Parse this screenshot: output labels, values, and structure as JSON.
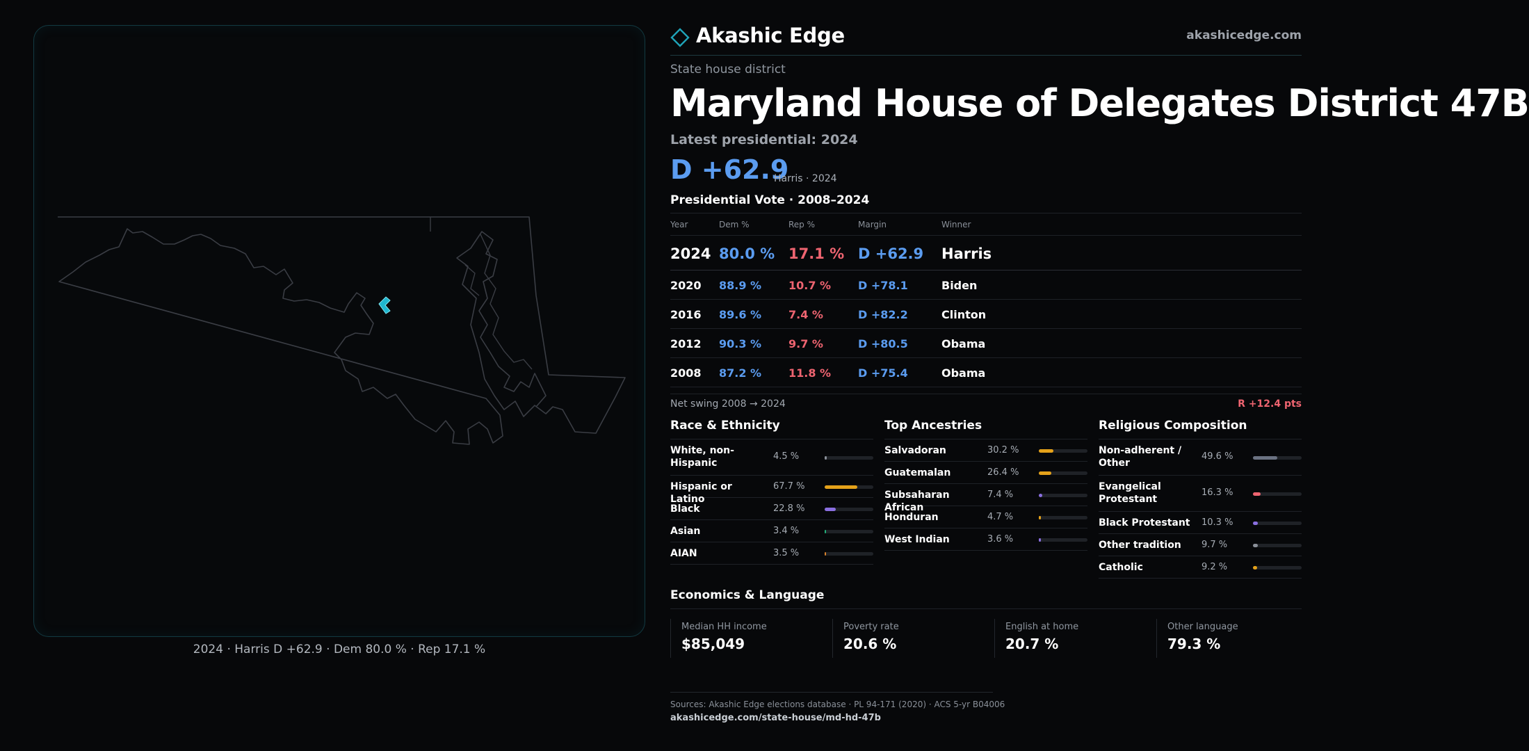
{
  "brand": {
    "name": "Akashic Edge",
    "url": "akashicedge.com",
    "logo_icon": "diamond-outline-icon",
    "accent": "#1fa3b8"
  },
  "district": {
    "eyebrow": "State house district",
    "title": "Maryland House of Delegates District 47B"
  },
  "latest": {
    "label": "Latest presidential: 2024",
    "margin": "D +62.9",
    "sub": "Harris · 2024"
  },
  "presidential": {
    "title": "Presidential Vote · 2008–2024",
    "headers": {
      "year": "Year",
      "dem": "Dem %",
      "rep": "Rep %",
      "margin": "Margin",
      "winner": "Winner"
    },
    "rows": [
      {
        "year": "2024",
        "dem": "80.0 %",
        "rep": "17.1 %",
        "margin": "D +62.9",
        "winner": "Harris"
      },
      {
        "year": "2020",
        "dem": "88.9 %",
        "rep": "10.7 %",
        "margin": "D +78.1",
        "winner": "Biden"
      },
      {
        "year": "2016",
        "dem": "89.6 %",
        "rep": "7.4 %",
        "margin": "D +82.2",
        "winner": "Clinton"
      },
      {
        "year": "2012",
        "dem": "90.3 %",
        "rep": "9.7 %",
        "margin": "D +80.5",
        "winner": "Obama"
      },
      {
        "year": "2008",
        "dem": "87.2 %",
        "rep": "11.8 %",
        "margin": "D +75.4",
        "winner": "Obama"
      }
    ],
    "swing_label": "Net swing 2008 → 2024",
    "swing_value": "R +12.4 pts"
  },
  "race": {
    "title": "Race & Ethnicity",
    "items": [
      {
        "label": "White, non-Hispanic",
        "value": "4.5 %",
        "fraction": 0.045,
        "color": "#8a8f98"
      },
      {
        "label": "Hispanic or Latino",
        "value": "67.7 %",
        "fraction": 0.677,
        "color": "#e5a21a"
      },
      {
        "label": "Black",
        "value": "22.8 %",
        "fraction": 0.228,
        "color": "#8a6fe0"
      },
      {
        "label": "Asian",
        "value": "3.4 %",
        "fraction": 0.034,
        "color": "#23b07a"
      },
      {
        "label": "AIAN",
        "value": "3.5 %",
        "fraction": 0.035,
        "color": "#d9822b"
      }
    ]
  },
  "ancestry": {
    "title": "Top Ancestries",
    "items": [
      {
        "label": "Salvadoran",
        "value": "30.2 %",
        "fraction": 0.302,
        "color": "#e5a21a"
      },
      {
        "label": "Guatemalan",
        "value": "26.4 %",
        "fraction": 0.264,
        "color": "#e5a21a"
      },
      {
        "label": "Subsaharan African",
        "value": "7.4 %",
        "fraction": 0.074,
        "color": "#8a6fe0"
      },
      {
        "label": "Honduran",
        "value": "4.7 %",
        "fraction": 0.047,
        "color": "#e5a21a"
      },
      {
        "label": "West Indian",
        "value": "3.6 %",
        "fraction": 0.036,
        "color": "#8a6fe0"
      }
    ]
  },
  "religion": {
    "title": "Religious Composition",
    "items": [
      {
        "label": "Non-adherent / Other",
        "value": "49.6 %",
        "fraction": 0.496,
        "color": "#6b7282"
      },
      {
        "label": "Evangelical Protestant",
        "value": "16.3 %",
        "fraction": 0.163,
        "color": "#ee6470"
      },
      {
        "label": "Black Protestant",
        "value": "10.3 %",
        "fraction": 0.103,
        "color": "#8a6fe0"
      },
      {
        "label": "Other tradition",
        "value": "9.7 %",
        "fraction": 0.097,
        "color": "#8a8f98"
      },
      {
        "label": "Catholic",
        "value": "9.2 %",
        "fraction": 0.092,
        "color": "#e5a21a"
      }
    ]
  },
  "economics": {
    "title": "Economics & Language",
    "cards": [
      {
        "label": "Median HH income",
        "value": "$85,049"
      },
      {
        "label": "Poverty rate",
        "value": "20.6 %"
      },
      {
        "label": "English at home",
        "value": "20.7 %"
      },
      {
        "label": "Other language",
        "value": "79.3 %"
      }
    ]
  },
  "sources": {
    "line": "Sources: Akashic Edge elections database · PL 94-171 (2020) · ACS 5-yr B04006",
    "url": "akashicedge.com/state-house/md-hd-47b"
  },
  "map": {
    "caption": "2024 · Harris D +62.9 · Dem 80.0 % · Rep 17.1 %",
    "district_color": "#1fb6cf",
    "outline_color": "#3a3d44"
  }
}
